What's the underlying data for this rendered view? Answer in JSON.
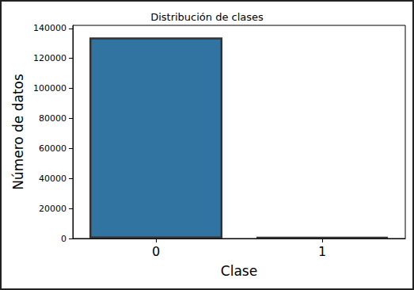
{
  "chart_data": {
    "type": "bar",
    "title": "Distribución de clases",
    "x_label": "Clase",
    "y_label": "Número de datos",
    "categories": [
      "0",
      "1"
    ],
    "values": [
      134000,
      1000
    ],
    "color": "#3274a1",
    "ylim": [
      0,
      142000
    ],
    "yticks": [
      0,
      20000,
      40000,
      60000,
      80000,
      100000,
      120000,
      140000
    ],
    "grid": false
  }
}
